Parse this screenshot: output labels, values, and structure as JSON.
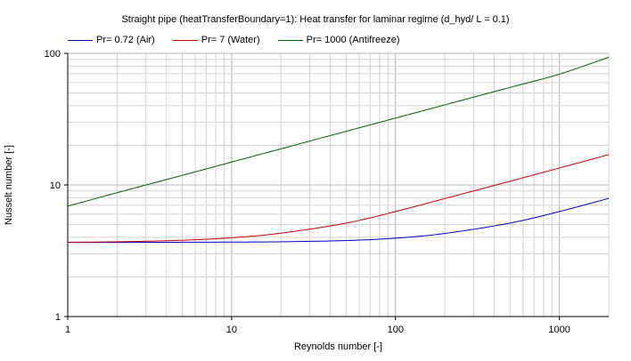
{
  "chart_data": {
    "type": "line",
    "title": "Straight pipe (heatTransferBoundary=1): Heat transfer for laminar regime (d_hyd/ L = 0.1)",
    "xlabel": "Reynolds number [-]",
    "ylabel": "Nusselt number [-]",
    "xscale": "log",
    "yscale": "log",
    "xlim": [
      1,
      2000
    ],
    "ylim": [
      1,
      100
    ],
    "x_ticks": [
      "1",
      "10",
      "100",
      "1000"
    ],
    "y_ticks": [
      "1",
      "10",
      "100"
    ],
    "grid": true,
    "legend_position": "top-left",
    "x": [
      1,
      2,
      5,
      10,
      20,
      50,
      100,
      200,
      500,
      1000,
      2000
    ],
    "series": [
      {
        "name": "Pr= 0.72 (Air)",
        "color": "#0000c8",
        "values": [
          3.66,
          3.66,
          3.67,
          3.68,
          3.7,
          3.78,
          3.94,
          4.28,
          5.13,
          6.28,
          7.9
        ]
      },
      {
        "name": "Pr= 7 (Water)",
        "color": "#c80000",
        "values": [
          3.67,
          3.7,
          3.8,
          3.97,
          4.3,
          5.13,
          6.28,
          7.88,
          10.67,
          13.45,
          17.0
        ]
      },
      {
        "name": "Pr= 1000 (Antifreeze)",
        "color": "#006400",
        "values": [
          6.9,
          8.73,
          11.83,
          14.93,
          18.81,
          25.56,
          32.22,
          40.6,
          55.11,
          69.44,
          93.5
        ]
      }
    ]
  }
}
